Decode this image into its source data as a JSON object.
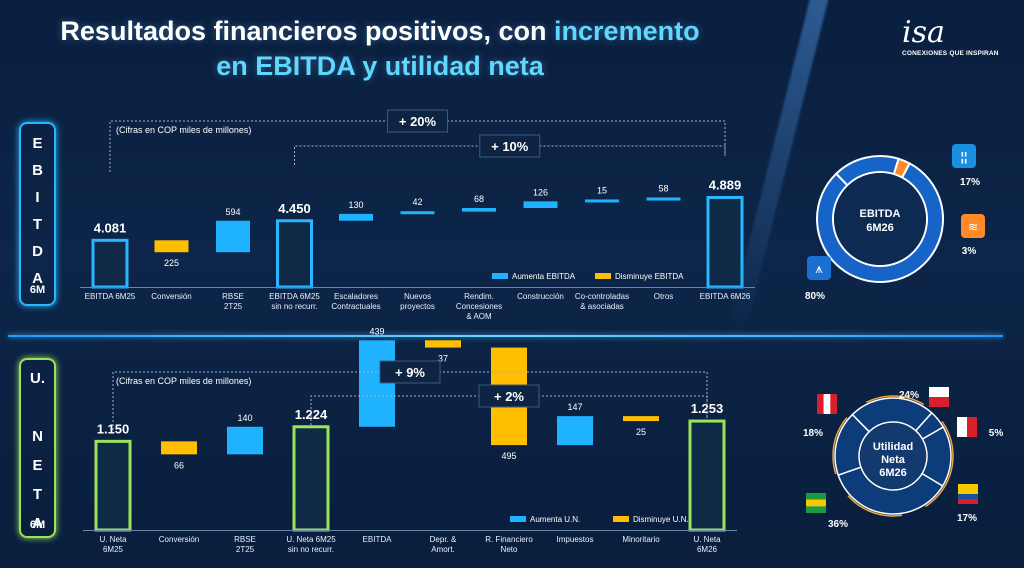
{
  "title": {
    "part1": "Resultados financieros positivos, con ",
    "highlight1": "incremento",
    "part2": "en EBITDA y utilidad neta"
  },
  "logo": {
    "brand": "isa",
    "tagline": "CONEXIONES QUE INSPIRAN"
  },
  "colors": {
    "increase": "#1fb2ff",
    "decrease": "#ffbf00",
    "ebitda_total_border": "#29b5ff",
    "un_total_border": "#9ae35a",
    "donut_main": "#1664c8",
    "donut_accent": "#ff8a2a"
  },
  "ebitda_panel": {
    "side_letters": [
      "E",
      "B",
      "I",
      "T",
      "D",
      "A"
    ],
    "side_sub": "6M"
  },
  "un_panel": {
    "side_letters": [
      "U.",
      "",
      "N",
      "E",
      "T",
      "A"
    ],
    "side_sub": "6M"
  },
  "chart_data": [
    {
      "type": "bar",
      "subtype": "waterfall",
      "note": "(Cifras en COP miles de millones)",
      "brackets": [
        "+ 20%",
        "+ 10%"
      ],
      "categories": [
        "EBITDA 6M25",
        "Conversión",
        "RBSE 2T25",
        "EBITDA 6M25 sin no recurr.",
        "Escaladores Contractuales",
        "Nuevos proyectos",
        "Rendim. Concesiones & AOM",
        "Construcción",
        "Co-controladas & asociadas",
        "Otros",
        "EBITDA 6M26"
      ],
      "values": [
        4081,
        -225,
        594,
        4450,
        130,
        42,
        68,
        126,
        15,
        58,
        4889
      ],
      "kinds": [
        "total",
        "decrease",
        "increase",
        "total",
        "increase",
        "increase",
        "increase",
        "increase",
        "increase",
        "increase",
        "total"
      ],
      "labels": [
        "4.081",
        "225",
        "594",
        "4.450",
        "130",
        "42",
        "68",
        "126",
        "15",
        "58",
        "4.889"
      ],
      "legend": [
        "Aumenta EBITDA",
        "Disminuye EBITDA"
      ]
    },
    {
      "type": "bar",
      "subtype": "waterfall",
      "note": "(Cifras en COP miles de millones)",
      "brackets": [
        "+ 9%",
        "+ 2%"
      ],
      "categories": [
        "U. Neta 6M25",
        "Conversión",
        "RBSE 2T25",
        "U. Neta 6M25 sin no recurr.",
        "EBITDA",
        "Depr. & Amort.",
        "R. Financiero Neto",
        "Impuestos",
        "Minoritario",
        "U. Neta 6M26"
      ],
      "values": [
        1150,
        -66,
        140,
        1224,
        439,
        -37,
        -495,
        147,
        -25,
        1253
      ],
      "kinds": [
        "total",
        "decrease",
        "increase",
        "total",
        "increase",
        "decrease",
        "decrease",
        "increase",
        "decrease",
        "total"
      ],
      "labels": [
        "1.150",
        "66",
        "140",
        "1.224",
        "439",
        "37",
        "495",
        "147",
        "25",
        "1.253"
      ],
      "legend": [
        "Aumenta U.N.",
        "Disminuye U.N."
      ]
    },
    {
      "type": "pie",
      "center_label": [
        "EBITDA",
        "6M26"
      ],
      "slices": [
        {
          "icon": "transmission-tower-icon",
          "value": 80,
          "label": "80%"
        },
        {
          "icon": "road-icon",
          "value": 17,
          "label": "17%"
        },
        {
          "icon": "wifi-icon",
          "value": 3,
          "label": "3%"
        }
      ]
    },
    {
      "type": "pie",
      "center_label": [
        "Utilidad",
        "Neta",
        "6M26"
      ],
      "slices": [
        {
          "icon": "colombia-flag-icon",
          "value": 17,
          "label": "17%",
          "color": "#1664c8"
        },
        {
          "icon": "brazil-flag-icon",
          "value": 36,
          "label": "36%",
          "color": "#1664c8"
        },
        {
          "icon": "peru-flag-icon",
          "value": 18,
          "label": "18%",
          "color": "#1664c8"
        },
        {
          "icon": "chile-flag-icon",
          "value": 24,
          "label": "24%",
          "color": "#1664c8"
        },
        {
          "icon": "panama-flag-icon",
          "value": 5,
          "label": "5%",
          "color": "#1664c8"
        }
      ]
    }
  ]
}
